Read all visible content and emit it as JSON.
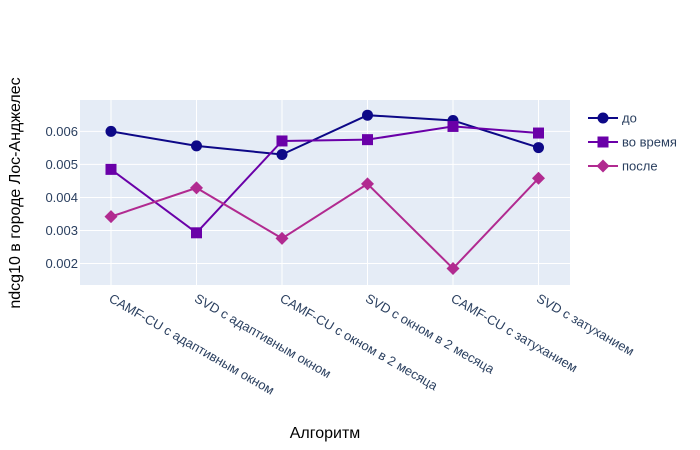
{
  "chart_data": {
    "type": "line",
    "categories": [
      "CAMF-CU с адаптивным окном",
      "SVD с адаптивным окном",
      "CAMF-CU с окном в 2 месяца",
      "SVD с окном в 2 месяца",
      "CAMF-CU с затуханием",
      "SVD с затуханием"
    ],
    "series": [
      {
        "name": "до",
        "marker": "circle",
        "color": "#0d0887",
        "values": [
          0.006,
          0.00556,
          0.0053,
          0.00649,
          0.00633,
          0.00551
        ]
      },
      {
        "name": "во время",
        "marker": "square",
        "color": "#6a00a8",
        "values": [
          0.00485,
          0.00293,
          0.00571,
          0.00575,
          0.00615,
          0.00595
        ]
      },
      {
        "name": "после",
        "marker": "diamond",
        "color": "#b12a90",
        "values": [
          0.00342,
          0.00429,
          0.00276,
          0.00441,
          0.00185,
          0.00458
        ]
      }
    ],
    "xlabel": "Алгоритм",
    "ylabel": "ndcg10 в городе Лос-Анджелес",
    "yticks": [
      0.002,
      0.003,
      0.004,
      0.005,
      0.006
    ],
    "ytick_labels": [
      "0.002",
      "0.003",
      "0.004",
      "0.005",
      "0.006"
    ],
    "ylim": [
      0.00135,
      0.00695
    ],
    "grid": true,
    "legend_position": "top-right",
    "plot_background": "#e5ecf6"
  }
}
